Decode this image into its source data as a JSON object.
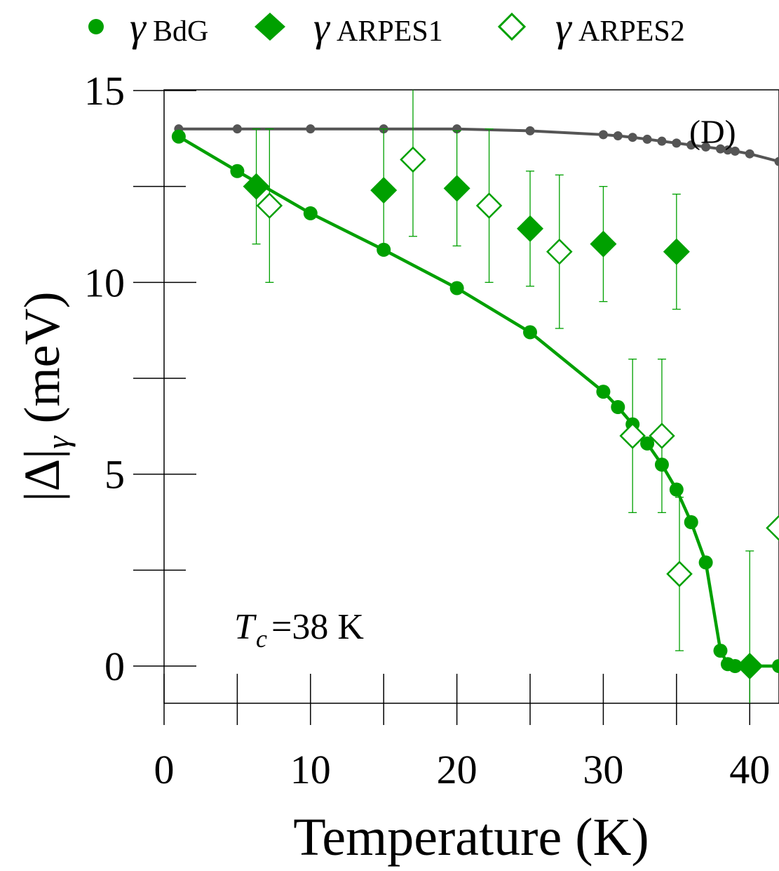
{
  "colors": {
    "green": "#00a000",
    "gray": "#555555",
    "axis": "#000000"
  },
  "legend": {
    "items": [
      {
        "symbol": "filled-circle",
        "name_prefix": "γ",
        "name_sub": "BdG"
      },
      {
        "symbol": "filled-diamond",
        "name_prefix": "γ",
        "name_sub": "ARPES1"
      },
      {
        "symbol": "open-diamond",
        "name_prefix": "γ",
        "name_sub": "ARPES2"
      }
    ]
  },
  "chart_data": {
    "type": "line",
    "panel_label": "(D)",
    "annotation": {
      "prefix": "T",
      "sub": "c",
      "suffix": "=38 K"
    },
    "xlabel": "Temperature (K)",
    "ylabel_prefix": "|Δ|",
    "ylabel_sub": "γ",
    "ylabel_suffix": " (meV)",
    "xlim": [
      0,
      42
    ],
    "ylim": [
      -1,
      15
    ],
    "x_ticks": [
      0,
      10,
      20,
      30,
      40
    ],
    "x_minor_ticks": [
      5,
      15,
      25,
      35
    ],
    "y_ticks": [
      0,
      5,
      10,
      15
    ],
    "y_minor_ticks": [
      2.5,
      7.5,
      12.5
    ],
    "series": [
      {
        "name": "reference (D)",
        "style": "gray-line",
        "x": [
          1,
          5,
          10,
          15,
          20,
          25,
          30,
          31,
          32,
          33,
          34,
          35,
          36,
          37,
          38,
          38.5,
          39,
          40,
          42
        ],
        "y": [
          14.0,
          14.0,
          14.0,
          14.0,
          14.0,
          13.95,
          13.85,
          13.82,
          13.78,
          13.73,
          13.68,
          13.63,
          13.58,
          13.53,
          13.48,
          13.45,
          13.42,
          13.35,
          13.15
        ]
      },
      {
        "name": "γBdG",
        "style": "green-line-circles",
        "x": [
          1,
          5,
          10,
          15,
          20,
          25,
          30,
          31,
          32,
          33,
          34,
          35,
          36,
          37,
          38,
          38.5,
          39,
          40,
          42
        ],
        "y": [
          13.8,
          12.9,
          11.8,
          10.85,
          9.85,
          8.7,
          7.15,
          6.75,
          6.3,
          5.8,
          5.25,
          4.6,
          3.75,
          2.7,
          0.4,
          0.05,
          0.0,
          0.0,
          0.0
        ]
      },
      {
        "name": "γARPES1",
        "style": "filled-diamond",
        "x": [
          6.3,
          15,
          20,
          25,
          30,
          35,
          40
        ],
        "y": [
          12.5,
          12.4,
          12.45,
          11.4,
          11.0,
          10.8,
          0.0
        ],
        "err": [
          1.5,
          1.6,
          1.5,
          1.5,
          1.5,
          1.5,
          0.0
        ]
      },
      {
        "name": "γARPES2",
        "style": "open-diamond",
        "x": [
          7.2,
          17,
          22.2,
          27,
          32,
          34,
          35.2,
          42
        ],
        "y": [
          12.0,
          13.2,
          12.0,
          10.8,
          6.0,
          6.0,
          2.4,
          3.6
        ],
        "err": [
          2.0,
          2.0,
          2.0,
          2.0,
          2.0,
          2.0,
          2.0,
          0.0
        ]
      }
    ],
    "extra_errorbars": [
      {
        "x": 40,
        "y": 0.0,
        "err": 3.0
      }
    ]
  }
}
